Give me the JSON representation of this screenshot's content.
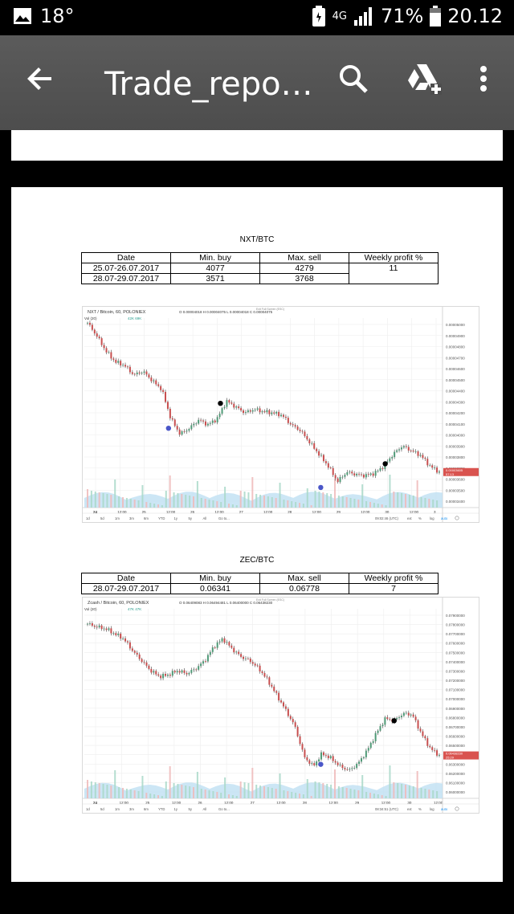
{
  "status_bar": {
    "temperature": "18°",
    "network": "4G",
    "battery": "71%",
    "time": "20.12",
    "icons": [
      "image-icon",
      "battery-saver-icon",
      "signal-icon",
      "battery-icon"
    ]
  },
  "app_bar": {
    "title": "Trade_repo…",
    "icons": [
      "back-arrow-icon",
      "search-icon",
      "drive-add-icon",
      "more-vert-icon"
    ]
  },
  "sections": [
    {
      "title": "NXT/BTC",
      "table": {
        "headers": [
          "Date",
          "Min. buy",
          "Max. sell",
          "Weekly profit %"
        ],
        "rows": [
          [
            "25.07-26.07.2017",
            "4077",
            "4279"
          ],
          [
            "28.07-29.07.2017",
            "3571",
            "3768"
          ]
        ],
        "weekly_profit": "11"
      },
      "chart": {
        "symbol_label": "NXT / Bitcoin, 60, POLONIEX",
        "ohlc": "O 0.00004018  H 0.00004075  L 0.00004018  C 0.00004075",
        "vol_label": "Vol (20)",
        "vol_values": "42K  69K",
        "exit_label": "Exit Full Screen (ESC)",
        "price_badge": "0.00003605",
        "price_badge2": "57:13",
        "x_ticks": [
          "24",
          "12:00",
          "25",
          "12:00",
          "26",
          "12:00",
          "27",
          "12:00",
          "28",
          "12:00",
          "29",
          "12:00",
          "30",
          "12:00",
          "3"
        ],
        "y_ticks": [
          "0.00005000",
          "0.00004900",
          "0.00004800",
          "0.00004700",
          "0.00004600",
          "0.00004500",
          "0.00004400",
          "0.00004300",
          "0.00004200",
          "0.00004100",
          "0.00004000",
          "0.00003900",
          "0.00003800",
          "0.00003700",
          "0.00003600",
          "0.00003500",
          "0.00003400"
        ],
        "range_buttons": [
          "1d",
          "5d",
          "1m",
          "3m",
          "6m",
          "YTD",
          "1y",
          "5y",
          "All",
          "Go to..."
        ],
        "footer_time": "09:02:46 (UTC)",
        "footer_opts": [
          "ext",
          "%",
          "log",
          "auto"
        ]
      }
    },
    {
      "title": "ZEC/BTC",
      "table": {
        "headers": [
          "Date",
          "Min. buy",
          "Max. sell",
          "Weekly profit %"
        ],
        "rows": [
          [
            "28.07-29.07.2017",
            "0.06341",
            "0.06778",
            "7"
          ]
        ]
      },
      "chart": {
        "symbol_label": "Zcash / Bitcoin, 60, POLONIEX",
        "ohlc": "O 0.06409083  H 0.06494481  L 0.06400000  C 0.06438230",
        "vol_label": "Vol (20)",
        "vol_values": "47K  47K",
        "exit_label": "Exit Full Screen (ESC)",
        "price_badge": "0.06438230",
        "price_badge2": "25:29",
        "x_ticks": [
          "24",
          "12:00",
          "25",
          "12:00",
          "26",
          "12:00",
          "27",
          "12:00",
          "28",
          "12:00",
          "29",
          "12:00",
          "30",
          "12:00"
        ],
        "y_ticks": [
          "0.07900000",
          "0.07800000",
          "0.07700000",
          "0.07600000",
          "0.07500000",
          "0.07400000",
          "0.07300000",
          "0.07200000",
          "0.07100000",
          "0.07000000",
          "0.06900000",
          "0.06800000",
          "0.06700000",
          "0.06600000",
          "0.06500000",
          "0.06400000",
          "0.06300000",
          "0.06200000",
          "0.06100000",
          "0.06000000"
        ],
        "range_buttons": [
          "1d",
          "5d",
          "1m",
          "3m",
          "6m",
          "YTD",
          "1y",
          "5y",
          "All",
          "Go to..."
        ],
        "footer_time": "08:34:51 (UTC)",
        "footer_opts": [
          "ext",
          "%",
          "log",
          "auto"
        ]
      }
    }
  ],
  "chart_data": [
    {
      "type": "candlestick",
      "title": "NXT / Bitcoin, 60, POLONIEX",
      "ylim": [
        3.4e-05,
        5e-05
      ],
      "close_trend": [
        4.96e-05,
        4.85e-05,
        4.72e-05,
        4.63e-05,
        4.6e-05,
        4.52e-05,
        4.55e-05,
        4.47e-05,
        4.4e-05,
        4.15e-05,
        4.02e-05,
        4.07e-05,
        4.14e-05,
        4.1e-05,
        4.15e-05,
        4.3e-05,
        4.25e-05,
        4.2e-05,
        4.23e-05,
        4.21e-05,
        4.2e-05,
        4.18e-05,
        4.1e-05,
        4.05e-05,
        3.95e-05,
        3.85e-05,
        3.75e-05,
        3.62e-05,
        3.7e-05,
        3.68e-05,
        3.67e-05,
        3.69e-05,
        3.75e-05,
        3.85e-05,
        3.92e-05,
        3.88e-05,
        3.84e-05,
        3.75e-05,
        3.7e-05
      ],
      "buy_markers": [
        4.07e-05,
        3.57e-05
      ],
      "sell_markers": [
        4.28e-05,
        3.77e-05
      ]
    },
    {
      "type": "candlestick",
      "title": "Zcash / Bitcoin, 60, POLONIEX",
      "ylim": [
        0.06,
        0.079
      ],
      "close_trend": [
        0.0775,
        0.0772,
        0.077,
        0.0765,
        0.076,
        0.0748,
        0.0738,
        0.0728,
        0.0722,
        0.0724,
        0.0728,
        0.0725,
        0.073,
        0.0738,
        0.0752,
        0.076,
        0.075,
        0.0742,
        0.0738,
        0.073,
        0.0718,
        0.0703,
        0.0688,
        0.0672,
        0.0642,
        0.0632,
        0.0645,
        0.064,
        0.0632,
        0.0628,
        0.0635,
        0.0648,
        0.0665,
        0.068,
        0.0678,
        0.0685,
        0.0684,
        0.0665,
        0.065,
        0.0643
      ],
      "buy_markers": [
        0.06341
      ],
      "sell_markers": [
        0.06778
      ]
    }
  ]
}
